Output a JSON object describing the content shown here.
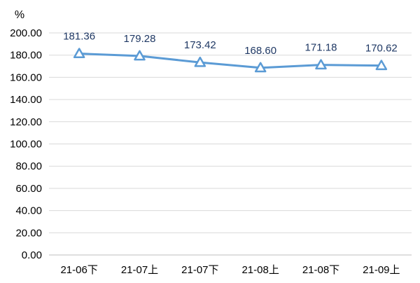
{
  "chart_data": {
    "type": "line",
    "title": "",
    "xlabel": "",
    "ylabel": "",
    "unit": "%",
    "categories": [
      "21-06下",
      "21-07上",
      "21-07下",
      "21-08上",
      "21-08下",
      "21-09上"
    ],
    "values": [
      181.36,
      179.28,
      173.42,
      168.6,
      171.18,
      170.62
    ],
    "value_labels": [
      "181.36",
      "179.28",
      "173.42",
      "168.60",
      "171.18",
      "170.62"
    ],
    "ylim": [
      0,
      200
    ],
    "yticks": [
      "0.00",
      "20.00",
      "40.00",
      "60.00",
      "80.00",
      "100.00",
      "120.00",
      "140.00",
      "160.00",
      "180.00",
      "200.00"
    ],
    "grid": true,
    "legend": "none",
    "marker": "triangle",
    "line_color": "#5b9bd5",
    "marker_fill": "#ffffff",
    "label_color": "#1f3864"
  }
}
